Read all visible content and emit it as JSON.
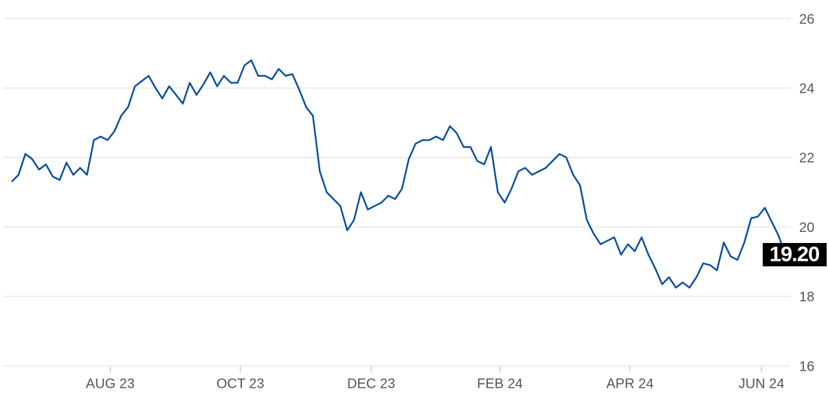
{
  "chart_data": {
    "type": "line",
    "color": "#0b4f9e",
    "values": [
      21.3,
      21.5,
      22.1,
      21.95,
      21.65,
      21.8,
      21.45,
      21.35,
      21.85,
      21.5,
      21.7,
      21.5,
      22.5,
      22.6,
      22.5,
      22.75,
      23.2,
      23.45,
      24.05,
      24.2,
      24.35,
      24.0,
      23.7,
      24.05,
      23.8,
      23.55,
      24.15,
      23.8,
      24.1,
      24.45,
      24.05,
      24.35,
      24.15,
      24.15,
      24.65,
      24.8,
      24.35,
      24.35,
      24.25,
      24.55,
      24.35,
      24.4,
      23.95,
      23.45,
      23.2,
      21.6,
      21.0,
      20.8,
      20.6,
      19.9,
      20.2,
      21.0,
      20.5,
      20.6,
      20.7,
      20.9,
      20.8,
      21.1,
      21.95,
      22.4,
      22.5,
      22.5,
      22.6,
      22.5,
      22.9,
      22.7,
      22.3,
      22.3,
      21.9,
      21.8,
      22.3,
      21.0,
      20.7,
      21.1,
      21.6,
      21.7,
      21.5,
      21.6,
      21.7,
      21.9,
      22.1,
      22.0,
      21.5,
      21.2,
      20.2,
      19.8,
      19.5,
      19.6,
      19.7,
      19.2,
      19.5,
      19.3,
      19.7,
      19.2,
      18.8,
      18.35,
      18.55,
      18.25,
      18.4,
      18.25,
      18.55,
      18.95,
      18.9,
      18.75,
      19.55,
      19.15,
      19.05,
      19.55,
      20.25,
      20.3,
      20.55,
      20.15,
      19.75,
      19.2
    ],
    "value_labels": [
      null,
      null,
      null,
      null,
      null,
      null,
      null,
      null,
      null,
      null,
      null,
      null,
      null,
      null,
      null,
      null,
      null,
      null,
      null,
      null,
      null,
      null,
      null,
      null,
      null,
      null,
      null,
      null,
      null,
      null,
      null,
      null,
      null,
      null,
      null,
      null,
      null,
      null,
      null,
      null,
      null,
      null,
      null,
      null,
      null,
      null,
      null,
      null,
      null,
      null,
      null,
      null,
      null,
      null,
      null,
      null,
      null,
      null,
      null,
      null,
      null,
      null,
      null,
      null,
      null,
      null,
      null,
      null,
      null,
      null,
      null,
      null,
      null,
      null,
      null,
      null,
      null,
      null,
      null,
      null,
      null,
      null,
      null,
      null,
      null,
      null,
      null,
      null,
      null,
      null,
      null,
      null,
      null,
      null,
      null,
      null,
      null,
      null,
      null,
      null,
      null,
      null,
      null,
      null,
      null,
      null,
      null,
      null,
      null,
      null,
      null,
      null,
      null,
      "19.20"
    ],
    "xlim": [
      0,
      113
    ],
    "xticks": [
      {
        "value": 14.4,
        "label": "AUG 23"
      },
      {
        "value": 33.4,
        "label": "OCT 23"
      },
      {
        "value": 52.5,
        "label": "DEC 23"
      },
      {
        "value": 71.3,
        "label": "FEB 24"
      },
      {
        "value": 90.3,
        "label": "APR 24"
      },
      {
        "value": 109.5,
        "label": "JUN 24"
      }
    ],
    "ylim": [
      16,
      26
    ],
    "yticks": [
      16,
      18,
      20,
      22,
      24,
      26
    ],
    "grid": true
  }
}
